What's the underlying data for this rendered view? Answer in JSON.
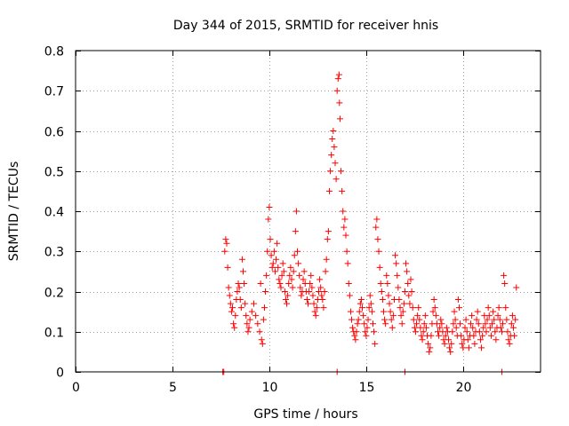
{
  "chart_data": {
    "type": "scatter",
    "title": "Day 344 of 2015, SRMTID for receiver hnis",
    "xlabel": "GPS time / hours",
    "ylabel": "SRMTID / TECUs",
    "xlim": [
      0,
      24
    ],
    "ylim": [
      0,
      0.8
    ],
    "x_ticks": [
      {
        "v": 0,
        "label": "0"
      },
      {
        "v": 5,
        "label": "5"
      },
      {
        "v": 10,
        "label": "10"
      },
      {
        "v": 15,
        "label": "15"
      },
      {
        "v": 20,
        "label": "20"
      }
    ],
    "y_ticks": [
      {
        "v": 0,
        "label": "0"
      },
      {
        "v": 0.1,
        "label": "0.1"
      },
      {
        "v": 0.2,
        "label": "0.2"
      },
      {
        "v": 0.3,
        "label": "0.3"
      },
      {
        "v": 0.4,
        "label": "0.4"
      },
      {
        "v": 0.5,
        "label": "0.5"
      },
      {
        "v": 0.6,
        "label": "0.6"
      },
      {
        "v": 0.7,
        "label": "0.7"
      },
      {
        "v": 0.8,
        "label": "0.8"
      }
    ],
    "grid": true,
    "marker": "plus",
    "color": "#ff0000",
    "series": [
      {
        "name": "SRMTID",
        "points": [
          [
            7.6,
            0.0
          ],
          [
            7.65,
            0.0
          ],
          [
            13.5,
            0.0
          ],
          [
            17.0,
            0.0
          ],
          [
            22.0,
            0.0
          ],
          [
            7.7,
            0.3
          ],
          [
            7.75,
            0.33
          ],
          [
            7.8,
            0.32
          ],
          [
            7.85,
            0.26
          ],
          [
            7.9,
            0.21
          ],
          [
            7.95,
            0.19
          ],
          [
            8.0,
            0.17
          ],
          [
            8.05,
            0.15
          ],
          [
            8.1,
            0.16
          ],
          [
            8.15,
            0.12
          ],
          [
            8.2,
            0.11
          ],
          [
            8.25,
            0.14
          ],
          [
            8.3,
            0.18
          ],
          [
            8.35,
            0.2
          ],
          [
            8.4,
            0.22
          ],
          [
            8.45,
            0.21
          ],
          [
            8.5,
            0.18
          ],
          [
            8.55,
            0.16
          ],
          [
            8.6,
            0.28
          ],
          [
            8.65,
            0.25
          ],
          [
            8.7,
            0.22
          ],
          [
            8.75,
            0.17
          ],
          [
            8.8,
            0.14
          ],
          [
            8.85,
            0.12
          ],
          [
            8.9,
            0.1
          ],
          [
            8.95,
            0.11
          ],
          [
            9.0,
            0.13
          ],
          [
            9.1,
            0.15
          ],
          [
            9.2,
            0.17
          ],
          [
            9.3,
            0.14
          ],
          [
            9.4,
            0.12
          ],
          [
            9.5,
            0.1
          ],
          [
            9.55,
            0.22
          ],
          [
            9.6,
            0.08
          ],
          [
            9.65,
            0.07
          ],
          [
            9.7,
            0.13
          ],
          [
            9.75,
            0.16
          ],
          [
            9.8,
            0.2
          ],
          [
            9.85,
            0.24
          ],
          [
            9.9,
            0.3
          ],
          [
            9.95,
            0.38
          ],
          [
            10.0,
            0.41
          ],
          [
            10.05,
            0.33
          ],
          [
            10.1,
            0.29
          ],
          [
            10.15,
            0.26
          ],
          [
            10.2,
            0.27
          ],
          [
            10.25,
            0.3
          ],
          [
            10.3,
            0.25
          ],
          [
            10.35,
            0.28
          ],
          [
            10.4,
            0.32
          ],
          [
            10.45,
            0.26
          ],
          [
            10.5,
            0.23
          ],
          [
            10.55,
            0.22
          ],
          [
            10.6,
            0.21
          ],
          [
            10.65,
            0.24
          ],
          [
            10.7,
            0.27
          ],
          [
            10.75,
            0.25
          ],
          [
            10.8,
            0.2
          ],
          [
            10.85,
            0.18
          ],
          [
            10.9,
            0.17
          ],
          [
            10.95,
            0.19
          ],
          [
            11.0,
            0.22
          ],
          [
            11.05,
            0.24
          ],
          [
            11.1,
            0.26
          ],
          [
            11.15,
            0.23
          ],
          [
            11.2,
            0.21
          ],
          [
            11.25,
            0.25
          ],
          [
            11.3,
            0.29
          ],
          [
            11.35,
            0.35
          ],
          [
            11.4,
            0.4
          ],
          [
            11.45,
            0.3
          ],
          [
            11.5,
            0.27
          ],
          [
            11.55,
            0.24
          ],
          [
            11.6,
            0.21
          ],
          [
            11.65,
            0.19
          ],
          [
            11.7,
            0.2
          ],
          [
            11.75,
            0.23
          ],
          [
            11.8,
            0.25
          ],
          [
            11.85,
            0.22
          ],
          [
            11.9,
            0.2
          ],
          [
            11.95,
            0.18
          ],
          [
            12.0,
            0.17
          ],
          [
            12.05,
            0.2
          ],
          [
            12.1,
            0.22
          ],
          [
            12.15,
            0.24
          ],
          [
            12.2,
            0.21
          ],
          [
            12.25,
            0.19
          ],
          [
            12.3,
            0.17
          ],
          [
            12.35,
            0.15
          ],
          [
            12.4,
            0.14
          ],
          [
            12.45,
            0.16
          ],
          [
            12.5,
            0.18
          ],
          [
            12.55,
            0.2
          ],
          [
            12.6,
            0.23
          ],
          [
            12.65,
            0.21
          ],
          [
            12.7,
            0.19
          ],
          [
            12.75,
            0.18
          ],
          [
            12.8,
            0.16
          ],
          [
            12.85,
            0.2
          ],
          [
            12.9,
            0.25
          ],
          [
            12.95,
            0.28
          ],
          [
            13.0,
            0.33
          ],
          [
            13.05,
            0.35
          ],
          [
            13.1,
            0.45
          ],
          [
            13.15,
            0.5
          ],
          [
            13.2,
            0.54
          ],
          [
            13.25,
            0.58
          ],
          [
            13.3,
            0.6
          ],
          [
            13.35,
            0.56
          ],
          [
            13.4,
            0.52
          ],
          [
            13.45,
            0.48
          ],
          [
            13.5,
            0.7
          ],
          [
            13.55,
            0.73
          ],
          [
            13.6,
            0.74
          ],
          [
            13.62,
            0.67
          ],
          [
            13.65,
            0.63
          ],
          [
            13.7,
            0.5
          ],
          [
            13.75,
            0.45
          ],
          [
            13.8,
            0.4
          ],
          [
            13.85,
            0.36
          ],
          [
            13.9,
            0.38
          ],
          [
            13.95,
            0.34
          ],
          [
            14.0,
            0.3
          ],
          [
            14.05,
            0.27
          ],
          [
            14.1,
            0.22
          ],
          [
            14.15,
            0.19
          ],
          [
            14.2,
            0.15
          ],
          [
            14.25,
            0.13
          ],
          [
            14.3,
            0.11
          ],
          [
            14.35,
            0.1
          ],
          [
            14.4,
            0.09
          ],
          [
            14.45,
            0.08
          ],
          [
            14.5,
            0.1
          ],
          [
            14.55,
            0.12
          ],
          [
            14.6,
            0.13
          ],
          [
            14.65,
            0.15
          ],
          [
            14.7,
            0.17
          ],
          [
            14.75,
            0.18
          ],
          [
            14.8,
            0.16
          ],
          [
            14.85,
            0.14
          ],
          [
            14.9,
            0.12
          ],
          [
            14.95,
            0.1
          ],
          [
            15.0,
            0.09
          ],
          [
            15.05,
            0.11
          ],
          [
            15.1,
            0.13
          ],
          [
            15.15,
            0.16
          ],
          [
            15.2,
            0.19
          ],
          [
            15.25,
            0.17
          ],
          [
            15.3,
            0.15
          ],
          [
            15.35,
            0.12
          ],
          [
            15.4,
            0.1
          ],
          [
            15.45,
            0.07
          ],
          [
            15.5,
            0.36
          ],
          [
            15.55,
            0.38
          ],
          [
            15.6,
            0.33
          ],
          [
            15.65,
            0.3
          ],
          [
            15.7,
            0.26
          ],
          [
            15.75,
            0.22
          ],
          [
            15.8,
            0.2
          ],
          [
            15.85,
            0.18
          ],
          [
            15.9,
            0.15
          ],
          [
            15.95,
            0.13
          ],
          [
            16.0,
            0.12
          ],
          [
            16.05,
            0.24
          ],
          [
            16.1,
            0.22
          ],
          [
            16.15,
            0.19
          ],
          [
            16.2,
            0.17
          ],
          [
            16.25,
            0.15
          ],
          [
            16.3,
            0.13
          ],
          [
            16.35,
            0.11
          ],
          [
            16.4,
            0.14
          ],
          [
            16.45,
            0.18
          ],
          [
            16.5,
            0.29
          ],
          [
            16.55,
            0.27
          ],
          [
            16.6,
            0.24
          ],
          [
            16.65,
            0.21
          ],
          [
            16.7,
            0.18
          ],
          [
            16.75,
            0.16
          ],
          [
            16.8,
            0.14
          ],
          [
            16.85,
            0.12
          ],
          [
            16.9,
            0.15
          ],
          [
            16.95,
            0.17
          ],
          [
            17.0,
            0.2
          ],
          [
            17.05,
            0.27
          ],
          [
            17.1,
            0.25
          ],
          [
            17.15,
            0.22
          ],
          [
            17.2,
            0.19
          ],
          [
            17.25,
            0.17
          ],
          [
            17.3,
            0.23
          ],
          [
            17.35,
            0.2
          ],
          [
            17.4,
            0.16
          ],
          [
            17.45,
            0.13
          ],
          [
            17.5,
            0.11
          ],
          [
            17.55,
            0.1
          ],
          [
            17.6,
            0.12
          ],
          [
            17.65,
            0.14
          ],
          [
            17.7,
            0.16
          ],
          [
            17.75,
            0.13
          ],
          [
            17.8,
            0.11
          ],
          [
            17.85,
            0.09
          ],
          [
            17.9,
            0.08
          ],
          [
            17.95,
            0.1
          ],
          [
            18.0,
            0.12
          ],
          [
            18.05,
            0.14
          ],
          [
            18.1,
            0.11
          ],
          [
            18.15,
            0.09
          ],
          [
            18.2,
            0.07
          ],
          [
            18.25,
            0.05
          ],
          [
            18.3,
            0.06
          ],
          [
            18.35,
            0.09
          ],
          [
            18.4,
            0.12
          ],
          [
            18.45,
            0.15
          ],
          [
            18.5,
            0.18
          ],
          [
            18.55,
            0.16
          ],
          [
            18.6,
            0.14
          ],
          [
            18.65,
            0.12
          ],
          [
            18.7,
            0.1
          ],
          [
            18.75,
            0.09
          ],
          [
            18.8,
            0.11
          ],
          [
            18.85,
            0.13
          ],
          [
            18.9,
            0.12
          ],
          [
            18.95,
            0.1
          ],
          [
            19.0,
            0.08
          ],
          [
            19.05,
            0.07
          ],
          [
            19.1,
            0.09
          ],
          [
            19.15,
            0.11
          ],
          [
            19.2,
            0.1
          ],
          [
            19.25,
            0.08
          ],
          [
            19.3,
            0.06
          ],
          [
            19.35,
            0.05
          ],
          [
            19.4,
            0.07
          ],
          [
            19.45,
            0.1
          ],
          [
            19.5,
            0.12
          ],
          [
            19.55,
            0.15
          ],
          [
            19.6,
            0.13
          ],
          [
            19.65,
            0.11
          ],
          [
            19.7,
            0.09
          ],
          [
            19.75,
            0.18
          ],
          [
            19.8,
            0.16
          ],
          [
            19.85,
            0.12
          ],
          [
            19.9,
            0.09
          ],
          [
            19.95,
            0.07
          ],
          [
            20.0,
            0.06
          ],
          [
            20.05,
            0.08
          ],
          [
            20.1,
            0.11
          ],
          [
            20.15,
            0.13
          ],
          [
            20.2,
            0.1
          ],
          [
            20.25,
            0.08
          ],
          [
            20.3,
            0.06
          ],
          [
            20.35,
            0.09
          ],
          [
            20.4,
            0.12
          ],
          [
            20.45,
            0.14
          ],
          [
            20.5,
            0.11
          ],
          [
            20.55,
            0.09
          ],
          [
            20.6,
            0.07
          ],
          [
            20.65,
            0.1
          ],
          [
            20.7,
            0.13
          ],
          [
            20.75,
            0.15
          ],
          [
            20.8,
            0.12
          ],
          [
            20.85,
            0.1
          ],
          [
            20.9,
            0.08
          ],
          [
            20.95,
            0.06
          ],
          [
            21.0,
            0.09
          ],
          [
            21.05,
            0.11
          ],
          [
            21.1,
            0.14
          ],
          [
            21.15,
            0.12
          ],
          [
            21.2,
            0.1
          ],
          [
            21.25,
            0.13
          ],
          [
            21.3,
            0.16
          ],
          [
            21.35,
            0.14
          ],
          [
            21.4,
            0.11
          ],
          [
            21.45,
            0.09
          ],
          [
            21.5,
            0.12
          ],
          [
            21.55,
            0.15
          ],
          [
            21.6,
            0.13
          ],
          [
            21.65,
            0.1
          ],
          [
            21.7,
            0.08
          ],
          [
            21.75,
            0.11
          ],
          [
            21.8,
            0.14
          ],
          [
            21.85,
            0.16
          ],
          [
            21.9,
            0.13
          ],
          [
            21.95,
            0.11
          ],
          [
            22.0,
            0.1
          ],
          [
            22.05,
            0.12
          ],
          [
            22.1,
            0.24
          ],
          [
            22.15,
            0.22
          ],
          [
            22.2,
            0.16
          ],
          [
            22.25,
            0.13
          ],
          [
            22.3,
            0.1
          ],
          [
            22.35,
            0.08
          ],
          [
            22.4,
            0.07
          ],
          [
            22.45,
            0.09
          ],
          [
            22.5,
            0.12
          ],
          [
            22.55,
            0.14
          ],
          [
            22.6,
            0.11
          ],
          [
            22.65,
            0.09
          ],
          [
            22.7,
            0.13
          ],
          [
            22.75,
            0.21
          ]
        ]
      }
    ]
  }
}
